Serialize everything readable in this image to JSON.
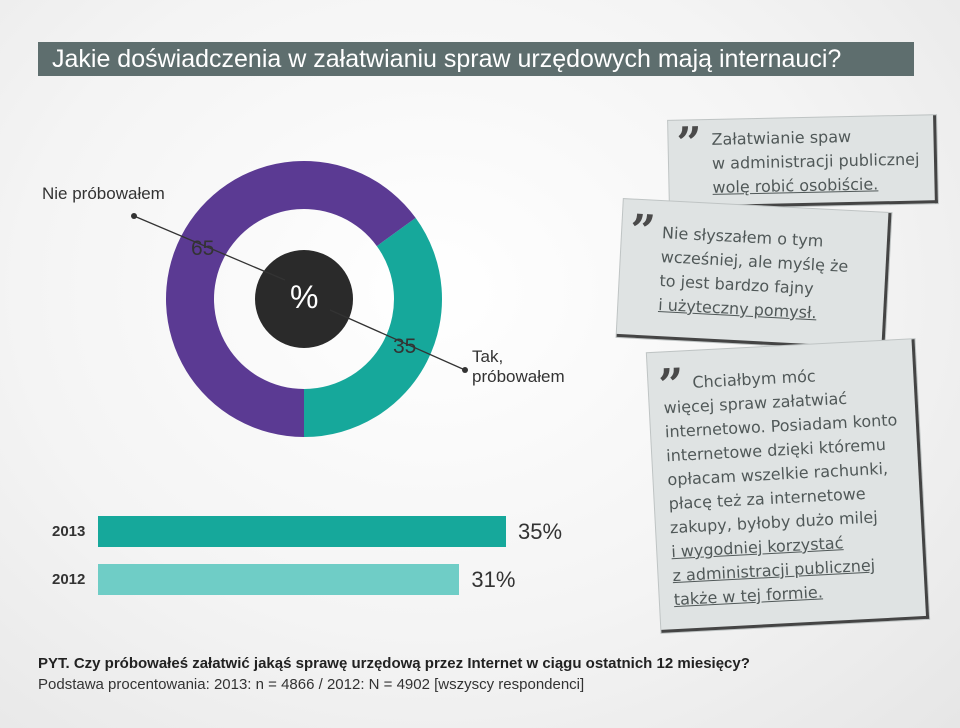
{
  "title": "Jakie doświadczenia w załatwianiu spraw urzędowych mają internauci?",
  "colors": {
    "purple": "#5b3a93",
    "teal": "#16a89b",
    "teal_light": "#6fcdc6",
    "dark": "#2a2a2a",
    "title_bg": "#5e6e6e"
  },
  "chart_data": [
    {
      "type": "pie",
      "center_label": "%",
      "slices": [
        {
          "label": "Nie próbowałem",
          "value": 65
        },
        {
          "label": "Tak, próbowałem",
          "value": 35
        }
      ]
    },
    {
      "type": "bar",
      "orientation": "horizontal",
      "categories": [
        "2013",
        "2012"
      ],
      "values": [
        35,
        31
      ],
      "value_labels": [
        "35%",
        "31%"
      ]
    }
  ],
  "donut": {
    "label_no": "Nie próbowałem",
    "label_yes_line1": "Tak,",
    "label_yes_line2": "próbowałem",
    "value_no": "65",
    "value_yes": "35",
    "center": "%"
  },
  "quotes": [
    {
      "lines": [
        "Załatwianie spaw",
        "w administracji publicznej",
        "wolę robić osobiście."
      ]
    },
    {
      "lines": [
        "Nie słyszałem o tym",
        "wcześniej, ale myślę że",
        "to jest bardzo fajny",
        "i użyteczny pomysł."
      ]
    },
    {
      "lines": [
        "Chciałbym móc",
        "więcej spraw załatwiać",
        "internetowo. Posiadam konto",
        "internetowe dzięki któremu",
        "opłacam wszelkie rachunki,",
        "płacę też za internetowe",
        "zakupy, byłoby dużo milej",
        "i wygodniej korzystać",
        "z administracji publicznej",
        "także w tej formie."
      ]
    }
  ],
  "footer": {
    "question": "PYT. Czy próbowałeś załatwić jakąś sprawę urzędową przez Internet w ciągu ostatnich 12 miesięcy?",
    "base": "Podstawa procentowania: 2013: n = 4866 / 2012: N = 4902 [wszyscy respondenci]"
  }
}
